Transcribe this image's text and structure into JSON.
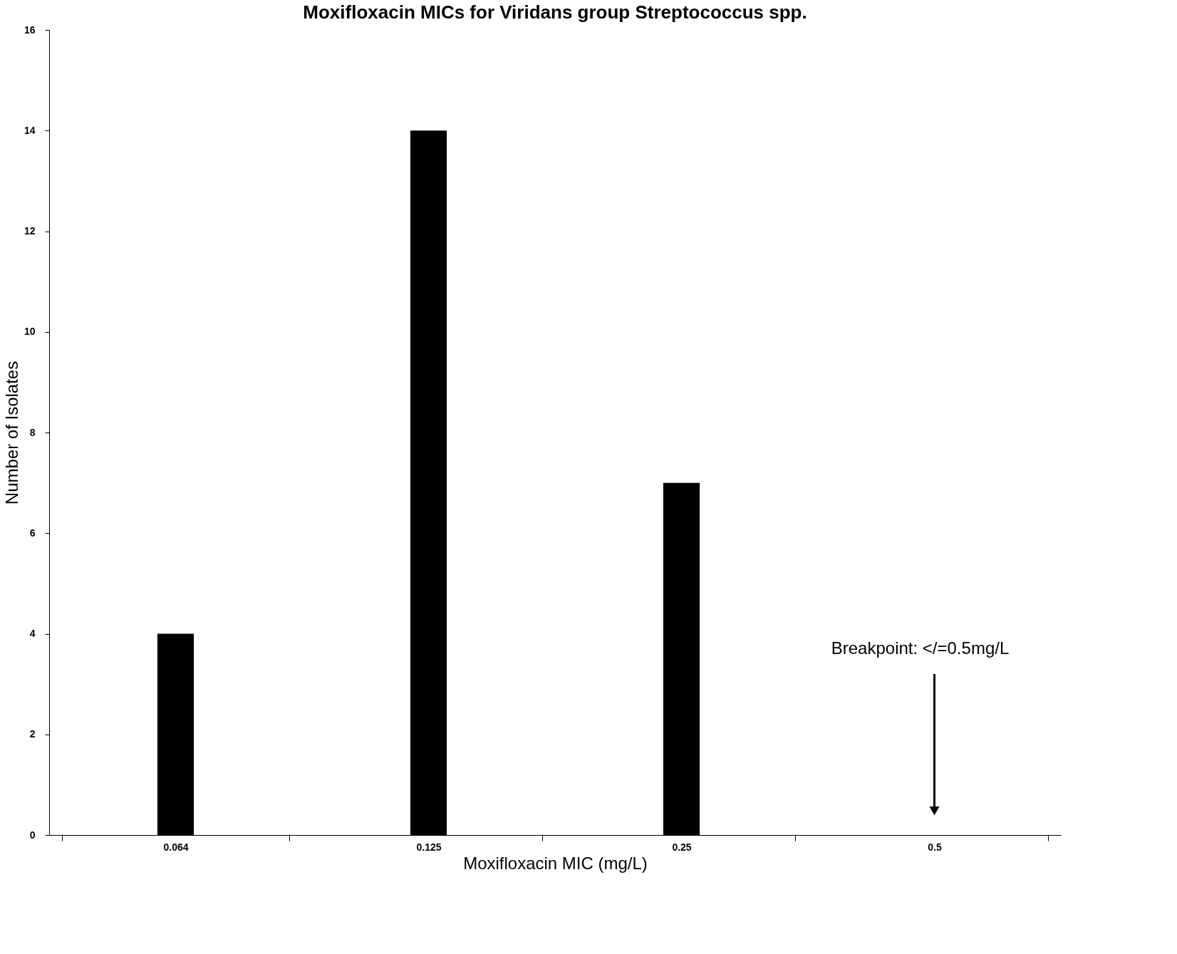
{
  "chart_data": {
    "type": "bar",
    "title": "Moxifloxacin MICs for Viridans group Streptococcus spp.",
    "xlabel": "Moxifloxacin MIC (mg/L)",
    "ylabel": "Number of Isolates",
    "categories": [
      "0.064",
      "0.125",
      "0.25",
      "0.5"
    ],
    "values": [
      4,
      14,
      7,
      0
    ],
    "color": "#000000",
    "ylim": [
      0,
      16
    ],
    "yticks": [
      0,
      2,
      4,
      6,
      8,
      10,
      12,
      14,
      16
    ],
    "grid": false,
    "annotations": [
      "Breakpoint: </=0.5mg/L"
    ]
  }
}
